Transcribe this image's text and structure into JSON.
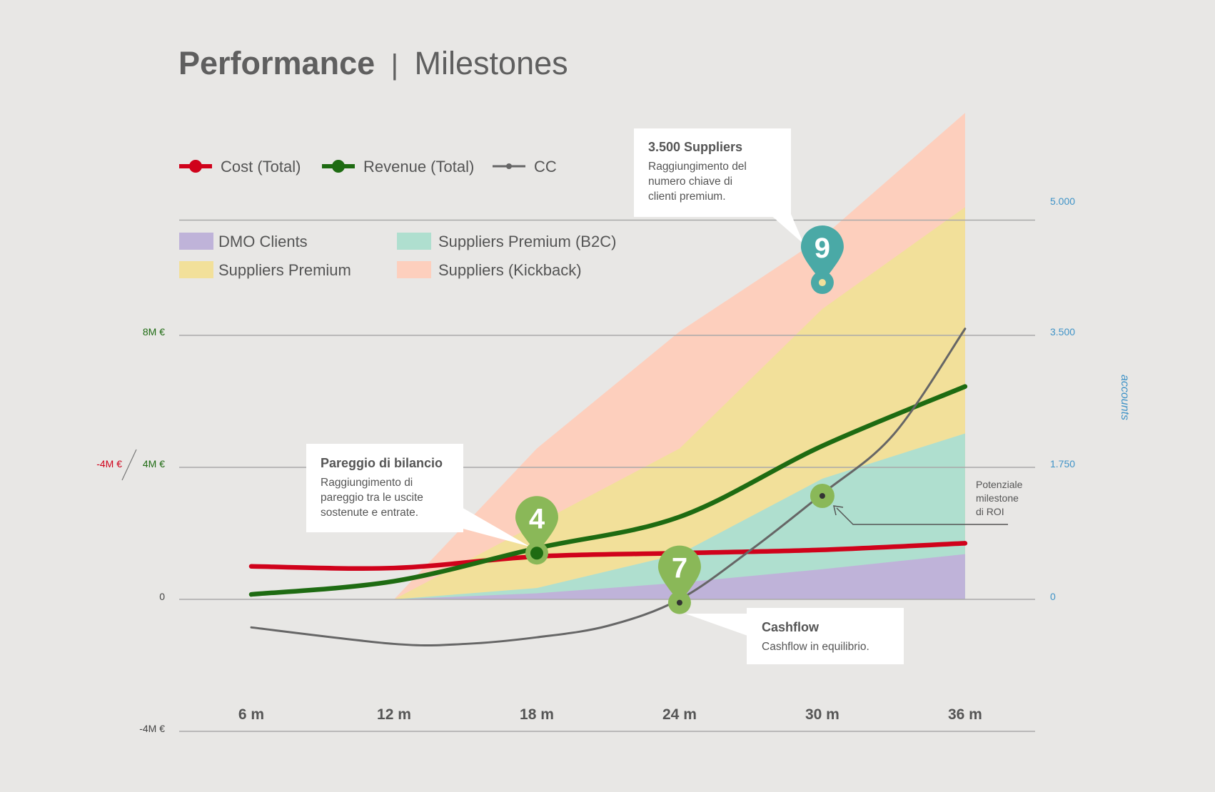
{
  "title": {
    "bold": "Performance",
    "separator": "|",
    "light": "Milestones"
  },
  "legend_lines": [
    {
      "label": "Cost (Total)",
      "color": "#d0021b"
    },
    {
      "label": "Revenue (Total)",
      "color": "#1e6b12"
    },
    {
      "label": "CC",
      "color": "#666666"
    }
  ],
  "legend_areas": [
    {
      "label": "DMO Clients",
      "color": "#bfb3d9"
    },
    {
      "label": "Suppliers Premium",
      "color": "#f2e09a"
    },
    {
      "label": "Suppliers Premium (B2C)",
      "color": "#afdfcf"
    },
    {
      "label": "Suppliers (Kickback)",
      "color": "#fdcfbd"
    }
  ],
  "left_axis": {
    "ticks": [
      "8M €",
      "4M €",
      "0",
      "-4M €"
    ],
    "secondary": "-4M €"
  },
  "right_axis": {
    "label": "accounts",
    "ticks": [
      "5.000",
      "3.500",
      "1.750",
      "0"
    ]
  },
  "annotations": {
    "suppliers": {
      "title": "3.500 Suppliers",
      "lines": [
        "Raggiungimento del",
        "numero chiave di",
        "clienti premium."
      ]
    },
    "pareggio": {
      "title": "Pareggio di bilancio",
      "lines": [
        "Raggiungimento di",
        "pareggio tra le uscite",
        "sostenute e entrate."
      ]
    },
    "cashflow": {
      "title": "Cashflow",
      "lines": [
        "Cashflow in equilibrio."
      ]
    },
    "roi": {
      "lines": [
        "Potenziale",
        "milestone",
        "di ROI"
      ]
    }
  },
  "milestones": [
    {
      "number": "4",
      "color": "#8ab858"
    },
    {
      "number": "7",
      "color": "#8ab858"
    },
    {
      "number": "9",
      "color": "#4aa9a6"
    }
  ],
  "chart_data": {
    "type": "area",
    "title": "Performance | Milestones",
    "categories": [
      "6 m",
      "12 m",
      "18 m",
      "24 m",
      "30 m",
      "36 m"
    ],
    "x": [
      6,
      12,
      18,
      24,
      30,
      36
    ],
    "xlim": [
      3,
      39
    ],
    "ylim_money": [
      -4,
      10
    ],
    "ylim_accounts": [
      0,
      5000
    ],
    "area_series": [
      {
        "name": "DMO Clients",
        "stacked_top_accounts": [
          [
            12,
            0
          ],
          [
            18,
            80
          ],
          [
            24,
            220
          ],
          [
            30,
            400
          ],
          [
            36,
            600
          ]
        ]
      },
      {
        "name": "Suppliers Premium (B2C)",
        "stacked_top_accounts": [
          [
            12,
            0
          ],
          [
            18,
            150
          ],
          [
            24,
            600
          ],
          [
            27,
            1100
          ],
          [
            30,
            1600
          ],
          [
            36,
            2200
          ]
        ]
      },
      {
        "name": "Suppliers Premium",
        "stacked_top_accounts": [
          [
            12,
            0
          ],
          [
            18,
            1000
          ],
          [
            24,
            2000
          ],
          [
            30,
            3850
          ],
          [
            36,
            5200
          ]
        ]
      },
      {
        "name": "Suppliers (Kickback)",
        "stacked_top_accounts": [
          [
            12,
            0
          ],
          [
            18,
            2000
          ],
          [
            24,
            3550
          ],
          [
            30,
            4800
          ],
          [
            36,
            6450
          ]
        ]
      }
    ],
    "line_series": [
      {
        "name": "Cost (Total)",
        "unit": "M €",
        "points": [
          [
            6,
            1.0
          ],
          [
            12,
            0.95
          ],
          [
            18,
            1.3
          ],
          [
            24,
            1.4
          ],
          [
            30,
            1.5
          ],
          [
            36,
            1.7
          ]
        ]
      },
      {
        "name": "Revenue (Total)",
        "unit": "M €",
        "points": [
          [
            6,
            0.15
          ],
          [
            12,
            0.55
          ],
          [
            18,
            1.55
          ],
          [
            24,
            2.5
          ],
          [
            30,
            4.65
          ],
          [
            36,
            6.45
          ]
        ]
      },
      {
        "name": "CC",
        "unit": "M €",
        "points": [
          [
            6,
            -0.85
          ],
          [
            12,
            -1.35
          ],
          [
            15,
            -1.35
          ],
          [
            18,
            -1.15
          ],
          [
            21,
            -0.8
          ],
          [
            24,
            0.0
          ],
          [
            27,
            1.5
          ],
          [
            30,
            3.2
          ],
          [
            33,
            5.0
          ],
          [
            36,
            8.2
          ]
        ]
      }
    ],
    "milestones": [
      {
        "label": "4",
        "x": 18,
        "y": 1.4
      },
      {
        "label": "7",
        "x": 24,
        "y": -0.1
      },
      {
        "label": "9",
        "x": 30,
        "accounts": 4200
      }
    ],
    "roi_point": {
      "x": 30,
      "y": 3.2
    },
    "grid": true,
    "legend": "top-left"
  }
}
